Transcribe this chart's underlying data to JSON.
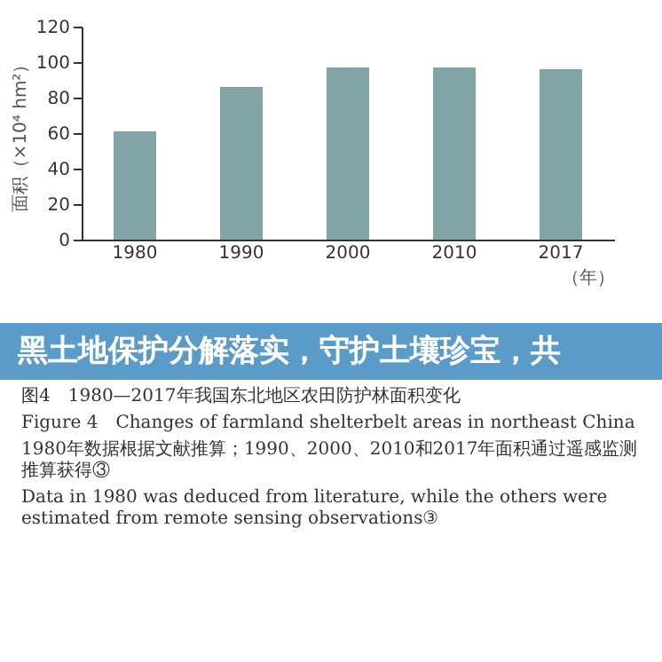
{
  "chart_data": {
    "type": "bar",
    "title": "黑土地保护分解落实，守护土壤珍宝，共",
    "ylabel": "面积（×10⁴ hm²）",
    "xlabel": "（年）",
    "categories": [
      "1980",
      "1990",
      "2000",
      "2010",
      "2017"
    ],
    "values": [
      61,
      86,
      97,
      97,
      96
    ],
    "color": "#82a3a6",
    "ylim": [
      0,
      120
    ],
    "yticks": [
      0,
      20,
      40,
      60,
      80,
      100,
      120
    ],
    "grid": false,
    "annotations": [
      "图4　1980—2017年我国东北地区农田防护林面积变化",
      "Figure 4　Changes of farmland shelterbelt areas in northeast China",
      "1980年数据根据文献推算；1990、2000、2010和2017年面积通过遥感监测推算获得③",
      "Data in 1980 was deduced from literature, while the others were estimated from remote sensing observations③"
    ]
  }
}
